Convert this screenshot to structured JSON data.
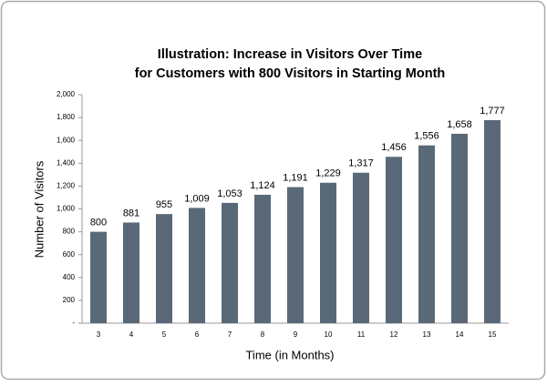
{
  "chart_data": {
    "type": "bar",
    "title": [
      "Illustration: Increase in Visitors Over Time",
      "for Customers with 800 Visitors in Starting Month"
    ],
    "x_label": "Time (in Months)",
    "y_label": "Number of Visitors",
    "categories": [
      3,
      4,
      5,
      6,
      7,
      8,
      9,
      10,
      11,
      12,
      13,
      14,
      15
    ],
    "values": [
      800,
      881,
      955,
      1009,
      1053,
      1124,
      1191,
      1229,
      1317,
      1456,
      1556,
      1658,
      1777
    ],
    "value_labels": [
      "800",
      "881",
      "955",
      "1,009",
      "1,053",
      "1,124",
      "1,191",
      "1,229",
      "1,317",
      "1,456",
      "1,556",
      "1,658",
      "1,777"
    ],
    "color": "#5a6978",
    "ylim": [
      0,
      2000
    ],
    "yticks": [
      {
        "value": 0,
        "label": "-"
      },
      200,
      400,
      600,
      800,
      {
        "value": 1000,
        "label": "1,000"
      },
      {
        "value": 1200,
        "label": "1,200"
      },
      {
        "value": 1400,
        "label": "1,400"
      },
      {
        "value": 1600,
        "label": "1,600"
      },
      {
        "value": 1800,
        "label": "1,800"
      },
      {
        "value": 2000,
        "label": "2,000"
      }
    ],
    "grid": false
  }
}
